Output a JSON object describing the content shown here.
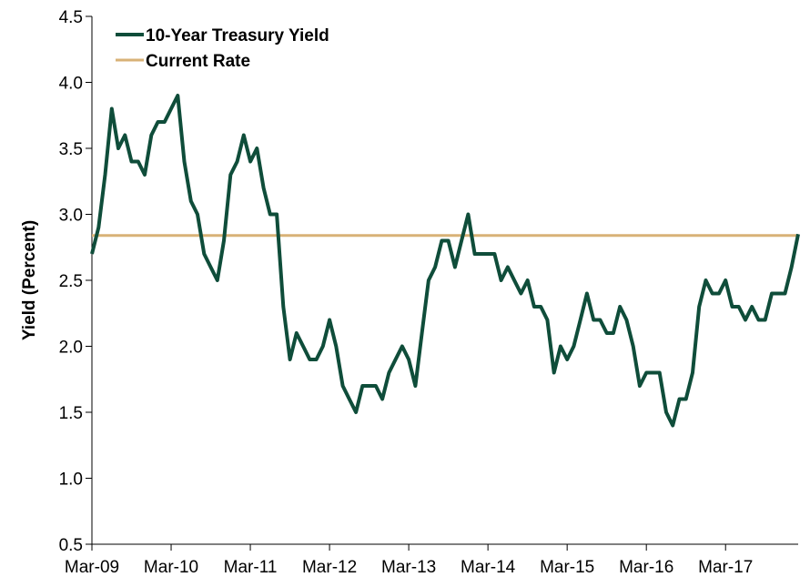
{
  "chart_data": {
    "type": "line",
    "title": "",
    "xlabel": "",
    "ylabel": "Yield (Percent)",
    "ylim": [
      0.5,
      4.5
    ],
    "yticks": [
      "0.5",
      "1.0",
      "1.5",
      "2.0",
      "2.5",
      "3.0",
      "3.5",
      "4.0",
      "4.5"
    ],
    "xlim": [
      "2009-03",
      "2018-02"
    ],
    "xticks": [
      "Mar-09",
      "Mar-10",
      "Mar-11",
      "Mar-12",
      "Mar-13",
      "Mar-14",
      "Mar-15",
      "Mar-16",
      "Mar-17"
    ],
    "grid": false,
    "legend_position": "top-left",
    "series": [
      {
        "name": "10-Year Treasury Yield",
        "color": "#0f4d3a",
        "points": [
          [
            "2009-03",
            2.7
          ],
          [
            "2009-04",
            2.9
          ],
          [
            "2009-05",
            3.3
          ],
          [
            "2009-06",
            3.8
          ],
          [
            "2009-07",
            3.5
          ],
          [
            "2009-08",
            3.6
          ],
          [
            "2009-09",
            3.4
          ],
          [
            "2009-10",
            3.4
          ],
          [
            "2009-11",
            3.3
          ],
          [
            "2009-12",
            3.6
          ],
          [
            "2010-01",
            3.7
          ],
          [
            "2010-02",
            3.7
          ],
          [
            "2010-03",
            3.8
          ],
          [
            "2010-04",
            3.9
          ],
          [
            "2010-05",
            3.4
          ],
          [
            "2010-06",
            3.1
          ],
          [
            "2010-07",
            3.0
          ],
          [
            "2010-08",
            2.7
          ],
          [
            "2010-09",
            2.6
          ],
          [
            "2010-10",
            2.5
          ],
          [
            "2010-11",
            2.8
          ],
          [
            "2010-12",
            3.3
          ],
          [
            "2011-01",
            3.4
          ],
          [
            "2011-02",
            3.6
          ],
          [
            "2011-03",
            3.4
          ],
          [
            "2011-04",
            3.5
          ],
          [
            "2011-05",
            3.2
          ],
          [
            "2011-06",
            3.0
          ],
          [
            "2011-07",
            3.0
          ],
          [
            "2011-08",
            2.3
          ],
          [
            "2011-09",
            1.9
          ],
          [
            "2011-10",
            2.1
          ],
          [
            "2011-11",
            2.0
          ],
          [
            "2011-12",
            1.9
          ],
          [
            "2012-01",
            1.9
          ],
          [
            "2012-02",
            2.0
          ],
          [
            "2012-03",
            2.2
          ],
          [
            "2012-04",
            2.0
          ],
          [
            "2012-05",
            1.7
          ],
          [
            "2012-06",
            1.6
          ],
          [
            "2012-07",
            1.5
          ],
          [
            "2012-08",
            1.7
          ],
          [
            "2012-09",
            1.7
          ],
          [
            "2012-10",
            1.7
          ],
          [
            "2012-11",
            1.6
          ],
          [
            "2012-12",
            1.8
          ],
          [
            "2013-01",
            1.9
          ],
          [
            "2013-02",
            2.0
          ],
          [
            "2013-03",
            1.9
          ],
          [
            "2013-04",
            1.7
          ],
          [
            "2013-05",
            2.1
          ],
          [
            "2013-06",
            2.5
          ],
          [
            "2013-07",
            2.6
          ],
          [
            "2013-08",
            2.8
          ],
          [
            "2013-09",
            2.8
          ],
          [
            "2013-10",
            2.6
          ],
          [
            "2013-11",
            2.8
          ],
          [
            "2013-12",
            3.0
          ],
          [
            "2014-01",
            2.7
          ],
          [
            "2014-02",
            2.7
          ],
          [
            "2014-03",
            2.7
          ],
          [
            "2014-04",
            2.7
          ],
          [
            "2014-05",
            2.5
          ],
          [
            "2014-06",
            2.6
          ],
          [
            "2014-07",
            2.5
          ],
          [
            "2014-08",
            2.4
          ],
          [
            "2014-09",
            2.5
          ],
          [
            "2014-10",
            2.3
          ],
          [
            "2014-11",
            2.3
          ],
          [
            "2014-12",
            2.2
          ],
          [
            "2015-01",
            1.8
          ],
          [
            "2015-02",
            2.0
          ],
          [
            "2015-03",
            1.9
          ],
          [
            "2015-04",
            2.0
          ],
          [
            "2015-05",
            2.2
          ],
          [
            "2015-06",
            2.4
          ],
          [
            "2015-07",
            2.2
          ],
          [
            "2015-08",
            2.2
          ],
          [
            "2015-09",
            2.1
          ],
          [
            "2015-10",
            2.1
          ],
          [
            "2015-11",
            2.3
          ],
          [
            "2015-12",
            2.2
          ],
          [
            "2016-01",
            2.0
          ],
          [
            "2016-02",
            1.7
          ],
          [
            "2016-03",
            1.8
          ],
          [
            "2016-04",
            1.8
          ],
          [
            "2016-05",
            1.8
          ],
          [
            "2016-06",
            1.5
          ],
          [
            "2016-07",
            1.4
          ],
          [
            "2016-08",
            1.6
          ],
          [
            "2016-09",
            1.6
          ],
          [
            "2016-10",
            1.8
          ],
          [
            "2016-11",
            2.3
          ],
          [
            "2016-12",
            2.5
          ],
          [
            "2017-01",
            2.4
          ],
          [
            "2017-02",
            2.4
          ],
          [
            "2017-03",
            2.5
          ],
          [
            "2017-04",
            2.3
          ],
          [
            "2017-05",
            2.3
          ],
          [
            "2017-06",
            2.2
          ],
          [
            "2017-07",
            2.3
          ],
          [
            "2017-08",
            2.2
          ],
          [
            "2017-09",
            2.2
          ],
          [
            "2017-10",
            2.4
          ],
          [
            "2017-11",
            2.4
          ],
          [
            "2017-12",
            2.4
          ],
          [
            "2018-01",
            2.6
          ],
          [
            "2018-02",
            2.85
          ]
        ]
      },
      {
        "name": "Current Rate",
        "color": "#d8b277",
        "value": 2.84
      }
    ]
  }
}
